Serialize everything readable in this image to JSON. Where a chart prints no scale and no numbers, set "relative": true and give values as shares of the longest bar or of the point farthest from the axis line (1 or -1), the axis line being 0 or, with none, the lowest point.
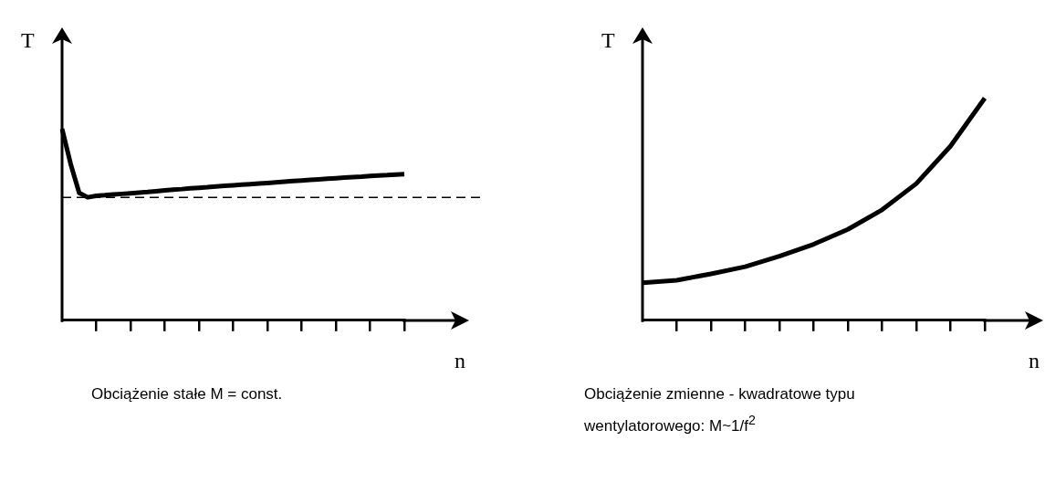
{
  "chart_data": [
    {
      "type": "line",
      "relative": true,
      "xlabel": "n",
      "ylabel": "T",
      "categories": [
        null,
        null,
        null,
        null,
        null,
        null,
        null,
        null,
        null,
        null,
        null,
        null,
        null,
        null,
        null,
        null,
        null,
        null,
        null,
        null,
        null,
        null,
        null,
        null,
        null,
        null,
        null,
        null,
        null,
        null,
        null,
        null,
        null,
        null,
        null,
        null,
        null,
        null,
        null,
        null,
        null
      ],
      "series": [
        {
          "color": "#000000",
          "values": [
            1,
            0.817,
            0.665,
            0.642,
            0.65,
            0.653,
            0.657,
            0.66,
            0.663,
            0.667,
            0.67,
            0.674,
            0.678,
            0.682,
            0.685,
            0.689,
            0.692,
            0.695,
            0.699,
            0.702,
            0.705,
            0.708,
            0.711,
            0.714,
            0.717,
            0.72,
            0.724,
            0.727,
            0.73,
            0.733,
            0.736,
            0.739,
            0.742,
            0.745,
            0.748,
            0.75,
            0.753,
            0.756,
            0.758,
            0.761,
            0.763
          ]
        }
      ],
      "marker": "none",
      "line_style": "solid",
      "ref_lines": [
        {
          "axis": "y",
          "value": 0.642,
          "line_style": "dashed",
          "color": "#000000"
        }
      ],
      "annotations": [
        "Obciążenie stałe M = const."
      ]
    },
    {
      "type": "line",
      "relative": true,
      "xlabel": "n",
      "ylabel": "T",
      "categories": [
        null,
        null,
        null,
        null,
        null,
        null,
        null,
        null,
        null,
        null,
        null
      ],
      "series": [
        {
          "color": "#000000",
          "values": [
            0.169,
            0.18,
            0.209,
            0.241,
            0.288,
            0.342,
            0.409,
            0.497,
            0.615,
            0.784,
            1
          ]
        }
      ],
      "marker": "none",
      "line_style": "solid",
      "annotations": [
        "Obciążenie zmienne - kwadratowe typu wentylatorowego: M~1/f$^{2}$"
      ]
    }
  ]
}
